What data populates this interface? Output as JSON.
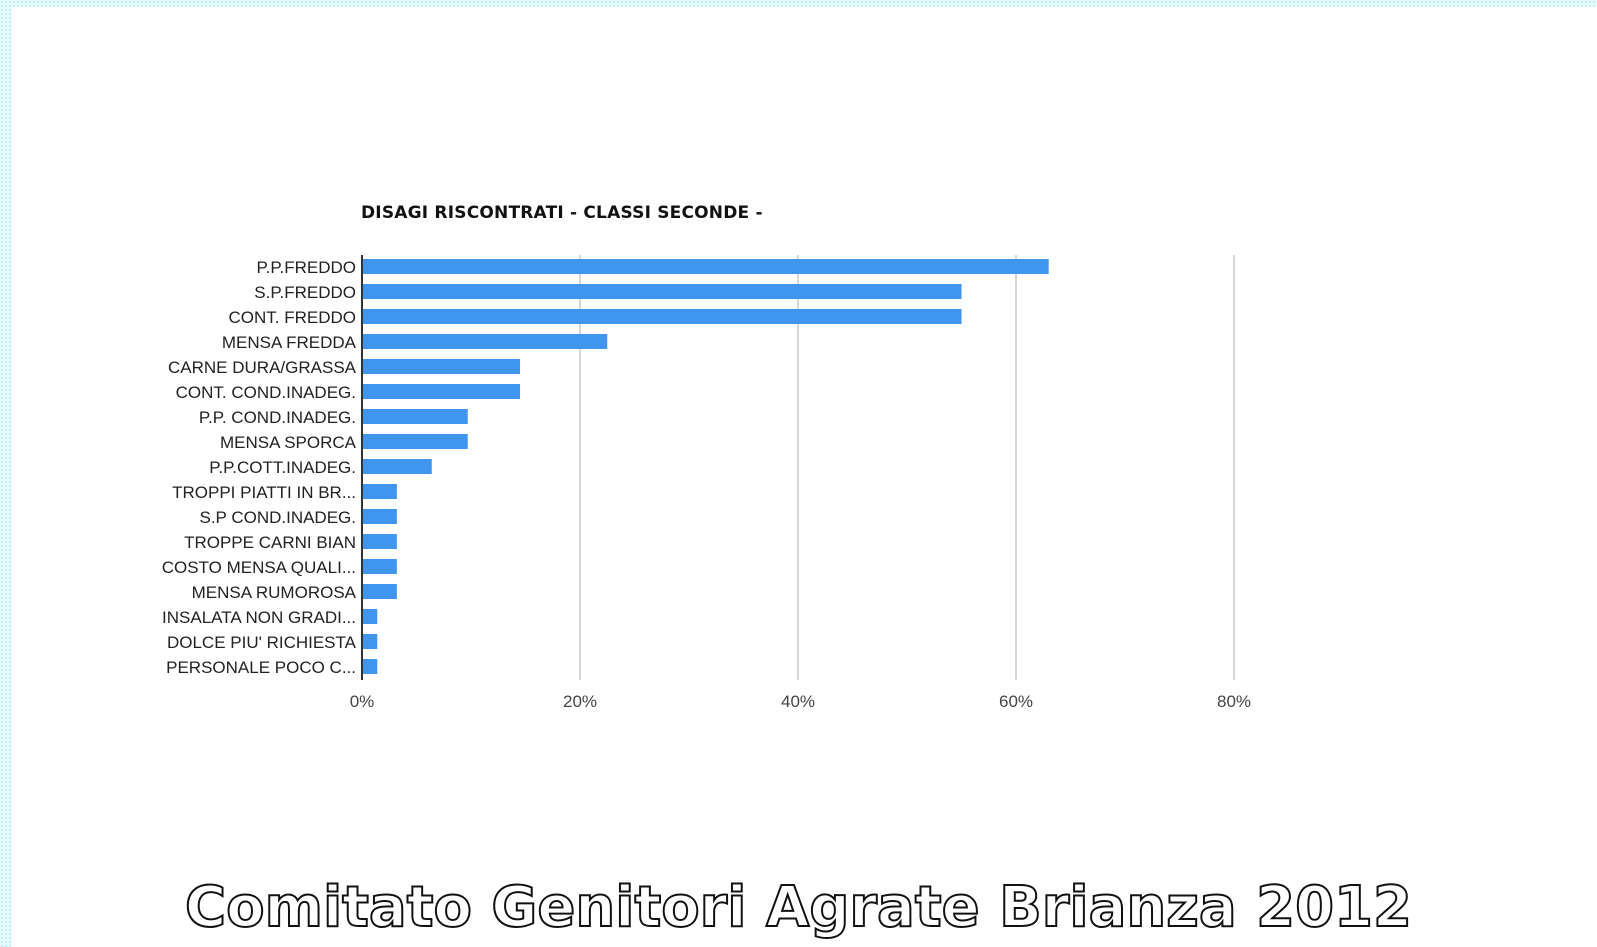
{
  "footer": {
    "text": "Comitato Genitori Agrate Brianza 2012"
  },
  "chart_data": {
    "type": "bar",
    "orientation": "horizontal",
    "title": "DISAGI RISCONTRATI - CLASSI SECONDE -",
    "xlabel": "",
    "ylabel": "",
    "xlim": [
      0,
      80
    ],
    "x_ticks": [
      "0%",
      "20%",
      "40%",
      "60%",
      "80%"
    ],
    "x_tick_values": [
      0,
      20,
      40,
      60,
      80
    ],
    "grid": true,
    "legend": "none",
    "bar_color": "#4096ee",
    "categories": [
      "P.P.FREDDO",
      "S.P.FREDDO",
      "CONT. FREDDO",
      "MENSA FREDDA",
      "CARNE DURA/GRASSA",
      "CONT. COND.INADEG.",
      "P.P. COND.INADEG.",
      "MENSA SPORCA",
      "P.P.COTT.INADEG.",
      "TROPPI PIATTI IN BR...",
      "S.P COND.INADEG.",
      "TROPPE CARNI BIAN",
      "COSTO MENSA QUALI...",
      "MENSA RUMOROSA",
      "INSALATA NON GRADI...",
      "DOLCE PIU' RICHIESTA",
      "PERSONALE POCO C..."
    ],
    "values": [
      63,
      55,
      55,
      22.5,
      14.5,
      14.5,
      9.7,
      9.7,
      6.4,
      3.2,
      3.2,
      3.2,
      3.2,
      3.2,
      1.4,
      1.4,
      1.4
    ]
  }
}
